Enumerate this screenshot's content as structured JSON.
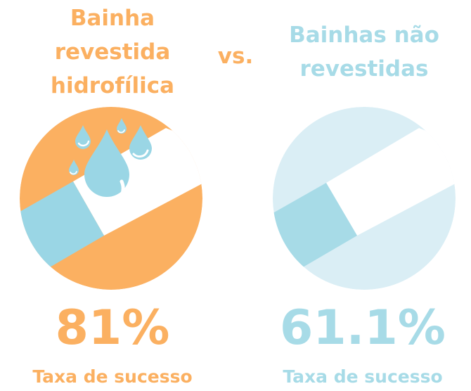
{
  "left": {
    "title_lines": [
      "Bainha",
      "revestida",
      "hidrofílica"
    ],
    "percent": "81%",
    "caption": "Taxa de sucesso",
    "colors": {
      "primary": "#fbb061",
      "accent": "#9ad6e5"
    }
  },
  "vs_label": "vs.",
  "right": {
    "title_lines": [
      "Bainhas não",
      "revestidas"
    ],
    "percent": "61.1%",
    "caption": "Taxa de sucesso",
    "colors": {
      "primary": "#daeef5",
      "accent": "#a7dbe7"
    }
  }
}
